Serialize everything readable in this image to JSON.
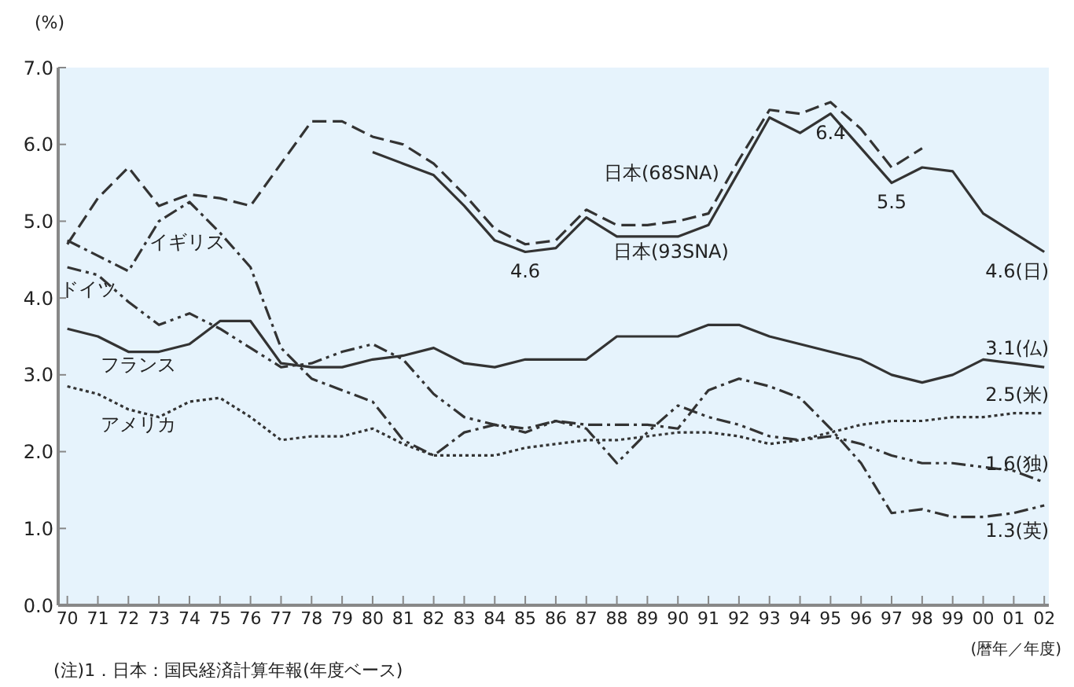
{
  "chart_data": {
    "type": "line",
    "ylabel": "(%)",
    "xlabel": "(暦年／年度)",
    "annotations": [
      "(注)1．日本：国民経済計算年報(年度ベース)"
    ],
    "categories": [
      "70",
      "71",
      "72",
      "73",
      "74",
      "75",
      "76",
      "77",
      "78",
      "79",
      "80",
      "81",
      "82",
      "83",
      "84",
      "85",
      "86",
      "87",
      "88",
      "89",
      "90",
      "91",
      "92",
      "93",
      "94",
      "95",
      "96",
      "97",
      "98",
      "99",
      "00",
      "01",
      "02"
    ],
    "ylim": [
      0,
      7
    ],
    "yticks": [
      {
        "value": 0,
        "label": "0.0"
      },
      {
        "value": 1,
        "label": "1.0"
      },
      {
        "value": 2,
        "label": "2.0"
      },
      {
        "value": 3,
        "label": "3.0"
      },
      {
        "value": 4,
        "label": "4.0"
      },
      {
        "value": 5,
        "label": "5.0"
      },
      {
        "value": 6,
        "label": "6.0"
      },
      {
        "value": 7,
        "label": "7.0"
      }
    ],
    "grid": false,
    "legend": false,
    "marker": "none",
    "series": [
      {
        "name": "日本(68SNA)",
        "color": "#333333",
        "line_style": "dashed",
        "values": [
          4.7,
          5.3,
          5.7,
          5.2,
          5.35,
          5.3,
          5.2,
          5.75,
          6.3,
          6.3,
          6.1,
          6.0,
          5.75,
          5.35,
          4.9,
          4.7,
          4.75,
          5.15,
          4.95,
          4.95,
          5.0,
          5.1,
          5.8,
          6.45,
          6.4,
          6.55,
          6.2,
          5.7,
          5.95,
          null,
          null,
          null,
          null
        ]
      },
      {
        "name": "日本(93SNA)",
        "color": "#333333",
        "line_style": "solid",
        "values": [
          null,
          null,
          null,
          null,
          null,
          null,
          null,
          null,
          null,
          null,
          5.9,
          5.75,
          5.6,
          5.2,
          4.75,
          4.6,
          4.65,
          5.05,
          4.8,
          4.8,
          4.8,
          4.95,
          5.65,
          6.35,
          6.15,
          6.4,
          5.95,
          5.5,
          5.7,
          5.65,
          5.1,
          4.85,
          4.6
        ],
        "value_labels": [
          null,
          null,
          null,
          null,
          null,
          null,
          null,
          null,
          null,
          null,
          null,
          null,
          null,
          null,
          null,
          "4.6",
          null,
          null,
          null,
          null,
          null,
          null,
          null,
          null,
          null,
          "6.4",
          null,
          "5.5",
          null,
          null,
          null,
          null,
          "4.6(日)"
        ]
      },
      {
        "name": "イギリス",
        "color": "#333333",
        "line_style": "dashdot",
        "values": [
          4.75,
          4.55,
          4.35,
          5.0,
          5.25,
          4.85,
          4.4,
          3.35,
          2.95,
          2.8,
          2.65,
          2.15,
          1.95,
          2.25,
          2.35,
          2.3,
          2.4,
          2.35,
          2.35,
          2.35,
          2.3,
          2.8,
          2.95,
          2.85,
          2.7,
          2.3,
          1.85,
          1.2,
          1.25,
          1.15,
          1.15,
          1.2,
          1.3
        ],
        "value_labels": [
          null,
          null,
          null,
          null,
          null,
          null,
          null,
          null,
          null,
          null,
          null,
          null,
          null,
          null,
          null,
          null,
          null,
          null,
          null,
          null,
          null,
          null,
          null,
          null,
          null,
          null,
          null,
          null,
          null,
          null,
          null,
          null,
          "1.3(英)"
        ]
      },
      {
        "name": "ドイツ",
        "color": "#333333",
        "line_style": "dashdotdot",
        "values": [
          4.4,
          4.3,
          3.95,
          3.65,
          3.8,
          3.6,
          3.35,
          3.1,
          3.15,
          3.3,
          3.4,
          3.2,
          2.75,
          2.45,
          2.35,
          2.25,
          2.4,
          2.3,
          1.85,
          2.25,
          2.6,
          2.45,
          2.35,
          2.2,
          2.15,
          2.2,
          2.1,
          1.95,
          1.85,
          1.85,
          1.8,
          1.75,
          1.6
        ],
        "value_labels": [
          null,
          null,
          null,
          null,
          null,
          null,
          null,
          null,
          null,
          null,
          null,
          null,
          null,
          null,
          null,
          null,
          null,
          null,
          null,
          null,
          null,
          null,
          null,
          null,
          null,
          null,
          null,
          null,
          null,
          null,
          null,
          null,
          "1.6(独)"
        ]
      },
      {
        "name": "フランス",
        "color": "#333333",
        "line_style": "solid",
        "values": [
          3.6,
          3.5,
          3.3,
          3.3,
          3.4,
          3.7,
          3.7,
          3.15,
          3.1,
          3.1,
          3.2,
          3.25,
          3.35,
          3.15,
          3.1,
          3.2,
          3.2,
          3.2,
          3.5,
          3.5,
          3.5,
          3.65,
          3.65,
          3.5,
          3.4,
          3.3,
          3.2,
          3.0,
          2.9,
          3.0,
          3.2,
          3.15,
          3.1
        ],
        "value_labels": [
          null,
          null,
          null,
          null,
          null,
          null,
          null,
          null,
          null,
          null,
          null,
          null,
          null,
          null,
          null,
          null,
          null,
          null,
          null,
          null,
          null,
          null,
          null,
          null,
          null,
          null,
          null,
          null,
          null,
          null,
          null,
          null,
          "3.1(仏)"
        ]
      },
      {
        "name": "アメリカ",
        "color": "#333333",
        "line_style": "dotted",
        "values": [
          2.85,
          2.75,
          2.55,
          2.45,
          2.65,
          2.7,
          2.45,
          2.15,
          2.2,
          2.2,
          2.3,
          2.1,
          1.95,
          1.95,
          1.95,
          2.05,
          2.1,
          2.15,
          2.15,
          2.2,
          2.25,
          2.25,
          2.2,
          2.1,
          2.15,
          2.25,
          2.35,
          2.4,
          2.4,
          2.45,
          2.45,
          2.5,
          2.5
        ],
        "value_labels": [
          null,
          null,
          null,
          null,
          null,
          null,
          null,
          null,
          null,
          null,
          null,
          null,
          null,
          null,
          null,
          null,
          null,
          null,
          null,
          null,
          null,
          null,
          null,
          null,
          null,
          null,
          null,
          null,
          null,
          null,
          null,
          null,
          "2.5(米)"
        ]
      }
    ]
  }
}
